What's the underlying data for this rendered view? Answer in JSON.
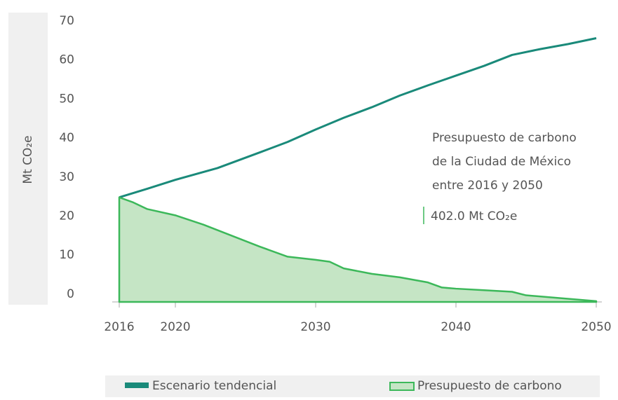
{
  "chart_data": {
    "type": "line",
    "y_label": "Mt CO₂e",
    "xlim": [
      2016,
      2050
    ],
    "xticks": [
      2016,
      2020,
      2030,
      2040,
      2050
    ],
    "ylim": [
      -2,
      70
    ],
    "yticks": [
      0,
      10,
      20,
      30,
      40,
      50,
      60,
      70
    ],
    "series": [
      {
        "name": "Escenario tendencial",
        "color": "#1a8a7a",
        "style": "line",
        "x": [
          2016,
          2018,
          2020,
          2023,
          2026,
          2028,
          2030,
          2032,
          2034,
          2036,
          2038,
          2040,
          2042,
          2044,
          2046,
          2048,
          2050
        ],
        "values": [
          24.8,
          27,
          29.3,
          32.3,
          36.3,
          39,
          42.2,
          45.2,
          47.9,
          50.9,
          53.5,
          56,
          58.5,
          61.3,
          62.8,
          64.1,
          65.6
        ]
      },
      {
        "name": "Presupuesto de carbono",
        "color": "#3cb85a",
        "fill": "#c5e5c5",
        "style": "area",
        "x": [
          2016,
          2017,
          2018,
          2020,
          2022,
          2024,
          2026,
          2028,
          2030,
          2031,
          2032,
          2034,
          2036,
          2038,
          2039,
          2040,
          2042,
          2044,
          2045,
          2050
        ],
        "values": [
          24.8,
          23.5,
          21.8,
          20.2,
          17.8,
          15,
          12.2,
          9.6,
          8.8,
          8.3,
          6.6,
          5.2,
          4.3,
          3,
          1.7,
          1.4,
          1,
          0.6,
          -0.3,
          -1.8
        ]
      }
    ],
    "annotation": {
      "lines": [
        "Presupuesto de carbono",
        "de la Ciudad de México",
        "entre 2016 y 2050"
      ],
      "value": "402.0 Mt CO₂e"
    }
  }
}
